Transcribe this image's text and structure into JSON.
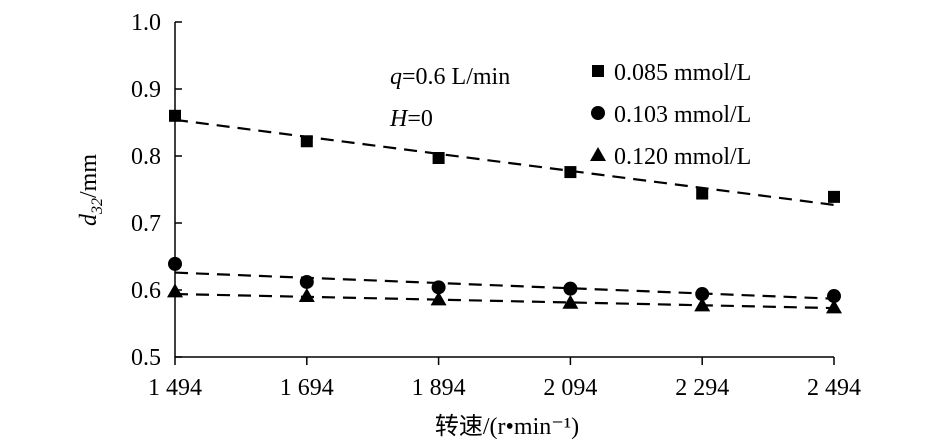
{
  "chart_data": {
    "type": "scatter",
    "xlabel": "转速/(r•min⁻¹)",
    "ylabel": "d32/mm",
    "ylabel_base": "d",
    "ylabel_sub": "32",
    "ylabel_unit": "/mm",
    "xlim": [
      1494,
      2494
    ],
    "ylim": [
      0.5,
      1.0
    ],
    "x_ticks": [
      1494,
      1694,
      1894,
      2094,
      2294,
      2494
    ],
    "x_tick_labels": [
      "1 494",
      "1 694",
      "1 894",
      "2 094",
      "2 294",
      "2 494"
    ],
    "y_ticks": [
      0.5,
      0.6,
      0.7,
      0.8,
      0.9,
      1.0
    ],
    "y_tick_labels": [
      "0.5",
      "0.6",
      "0.7",
      "0.8",
      "0.9",
      "1.0"
    ],
    "grid": false,
    "legend_position": "top-right",
    "annotations": {
      "q_var": "q",
      "q_rest": "=0.6 L/min",
      "h_var": "H",
      "h_rest": "=0"
    },
    "series": [
      {
        "name": "0.085 mmol/L",
        "marker": "square",
        "x": [
          1494,
          1694,
          1894,
          2094,
          2294,
          2494
        ],
        "values": [
          0.86,
          0.822,
          0.797,
          0.776,
          0.744,
          0.739
        ],
        "fit": [
          0.854,
          0.727
        ]
      },
      {
        "name": "0.103 mmol/L",
        "marker": "circle",
        "x": [
          1494,
          1694,
          1894,
          2094,
          2294,
          2494
        ],
        "values": [
          0.639,
          0.612,
          0.604,
          0.602,
          0.594,
          0.591
        ],
        "fit": [
          0.626,
          0.587
        ]
      },
      {
        "name": "0.120 mmol/L",
        "marker": "triangle",
        "x": [
          1494,
          1694,
          1894,
          2094,
          2294,
          2494
        ],
        "values": [
          0.598,
          0.591,
          0.586,
          0.581,
          0.577,
          0.574
        ],
        "fit": [
          0.594,
          0.573
        ]
      }
    ]
  }
}
